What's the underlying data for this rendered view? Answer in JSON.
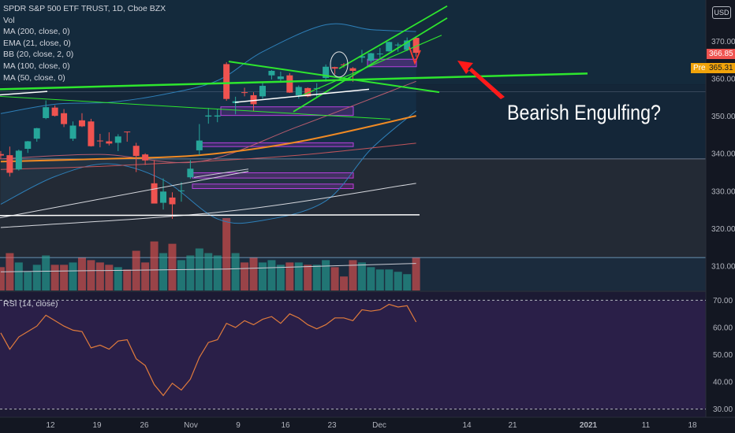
{
  "header": {
    "symbol_line": "SPDR S&P 500 ETF TRUST, 1D, Cboe BZX",
    "indicators": [
      "Vol",
      "MA (200, close, 0)",
      "EMA (21, close, 0)",
      "BB (20, close, 2, 0)",
      "MA (100, close, 0)",
      "MA (50, close, 0)"
    ],
    "rsi_label": "RSI (14, close)",
    "currency": "USD"
  },
  "annotation": "Bearish Engulfing?",
  "price_tags": {
    "last": "366.85",
    "pre_label": "Pre",
    "pre_value": "365.31"
  },
  "colors": {
    "up": "#26a69a",
    "down": "#ef5350",
    "trendline": "#2ee62e",
    "arrow": "#ff1a1a",
    "rsi": "#e07b3c"
  },
  "chart_data": [
    {
      "type": "candlestick",
      "title": "SPDR S&P 500 ETF TRUST, 1D, Cboe BZX",
      "ylim": [
        303.5,
        381
      ],
      "y_ticks": [
        310,
        320,
        330,
        340,
        350,
        360,
        370
      ],
      "x_tick_labels": [
        "12",
        "19",
        "26",
        "Nov",
        "9",
        "16",
        "23",
        "Dec",
        "14",
        "21",
        "2021",
        "11",
        "18"
      ],
      "candles": [
        {
          "date": "2020-10-05",
          "o": 339.9,
          "h": 340.7,
          "l": 338.6,
          "c": 339.5,
          "v": 50
        },
        {
          "date": "2020-10-06",
          "o": 339.6,
          "h": 341.9,
          "l": 333.9,
          "c": 334.9,
          "v": 80
        },
        {
          "date": "2020-10-07",
          "o": 335.8,
          "h": 341.1,
          "l": 335.5,
          "c": 340.8,
          "v": 60
        },
        {
          "date": "2020-10-08",
          "o": 341.3,
          "h": 343.4,
          "l": 340.2,
          "c": 343.3,
          "v": 40
        },
        {
          "date": "2020-10-09",
          "o": 344.0,
          "h": 346.9,
          "l": 343.2,
          "c": 346.8,
          "v": 55
        },
        {
          "date": "2020-10-12",
          "o": 349.5,
          "h": 354.2,
          "l": 349.2,
          "c": 352.4,
          "v": 75
        },
        {
          "date": "2020-10-13",
          "o": 352.3,
          "h": 352.9,
          "l": 349.9,
          "c": 350.1,
          "v": 55
        },
        {
          "date": "2020-10-14",
          "o": 350.8,
          "h": 351.9,
          "l": 347.1,
          "c": 347.9,
          "v": 55
        },
        {
          "date": "2020-10-15",
          "o": 344.0,
          "h": 348.6,
          "l": 343.4,
          "c": 347.5,
          "v": 60
        },
        {
          "date": "2020-10-16",
          "o": 348.9,
          "h": 350.8,
          "l": 347.1,
          "c": 347.3,
          "v": 70
        },
        {
          "date": "2020-10-19",
          "o": 348.6,
          "h": 349.3,
          "l": 341.9,
          "c": 342.0,
          "v": 65
        },
        {
          "date": "2020-10-20",
          "o": 343.5,
          "h": 345.3,
          "l": 341.7,
          "c": 343.4,
          "v": 60
        },
        {
          "date": "2020-10-21",
          "o": 343.3,
          "h": 345.7,
          "l": 342.2,
          "c": 342.7,
          "v": 55
        },
        {
          "date": "2020-10-22",
          "o": 342.9,
          "h": 345.2,
          "l": 340.7,
          "c": 344.6,
          "v": 50
        },
        {
          "date": "2020-10-23",
          "o": 345.9,
          "h": 345.9,
          "l": 343.2,
          "c": 345.8,
          "v": 45
        },
        {
          "date": "2020-10-26",
          "o": 342.1,
          "h": 342.9,
          "l": 335.1,
          "c": 339.4,
          "v": 85
        },
        {
          "date": "2020-10-27",
          "o": 339.8,
          "h": 340.1,
          "l": 337.0,
          "c": 338.2,
          "v": 60
        },
        {
          "date": "2020-10-28",
          "o": 332.1,
          "h": 338.3,
          "l": 326.8,
          "c": 326.7,
          "v": 105
        },
        {
          "date": "2020-10-29",
          "o": 326.9,
          "h": 333.4,
          "l": 325.1,
          "c": 329.9,
          "v": 80
        },
        {
          "date": "2020-10-30",
          "o": 328.3,
          "h": 329.7,
          "l": 322.6,
          "c": 326.5,
          "v": 100
        },
        {
          "date": "2020-11-02",
          "o": 330.2,
          "h": 332.4,
          "l": 327.2,
          "c": 330.2,
          "v": 65
        },
        {
          "date": "2020-11-03",
          "o": 333.7,
          "h": 338.3,
          "l": 333.3,
          "c": 336.0,
          "v": 75
        },
        {
          "date": "2020-11-04",
          "o": 340.9,
          "h": 347.9,
          "l": 339.6,
          "c": 343.5,
          "v": 90
        },
        {
          "date": "2020-11-05",
          "o": 349.9,
          "h": 352.2,
          "l": 348.0,
          "c": 350.2,
          "v": 80
        },
        {
          "date": "2020-11-06",
          "o": 349.9,
          "h": 352.0,
          "l": 348.4,
          "c": 350.2,
          "v": 75
        },
        {
          "date": "2020-11-09",
          "o": 363.9,
          "h": 364.4,
          "l": 354.1,
          "c": 354.6,
          "v": 155
        },
        {
          "date": "2020-11-10",
          "o": 353.5,
          "h": 355.2,
          "l": 350.5,
          "c": 354.0,
          "v": 80
        },
        {
          "date": "2020-11-11",
          "o": 356.4,
          "h": 357.6,
          "l": 355.3,
          "c": 356.3,
          "v": 60
        },
        {
          "date": "2020-11-12",
          "o": 355.6,
          "h": 356.4,
          "l": 351.3,
          "c": 353.2,
          "v": 70
        },
        {
          "date": "2020-11-13",
          "o": 355.3,
          "h": 358.9,
          "l": 354.7,
          "c": 358.1,
          "v": 60
        },
        {
          "date": "2020-11-16",
          "o": 360.9,
          "h": 362.3,
          "l": 359.8,
          "c": 362.1,
          "v": 65
        },
        {
          "date": "2020-11-17",
          "o": 359.9,
          "h": 361.9,
          "l": 359.1,
          "c": 360.6,
          "v": 55
        },
        {
          "date": "2020-11-18",
          "o": 360.9,
          "h": 361.5,
          "l": 356.2,
          "c": 356.3,
          "v": 60
        },
        {
          "date": "2020-11-19",
          "o": 355.6,
          "h": 358.2,
          "l": 354.7,
          "c": 357.8,
          "v": 60
        },
        {
          "date": "2020-11-20",
          "o": 357.5,
          "h": 357.7,
          "l": 355.1,
          "c": 355.3,
          "v": 55
        },
        {
          "date": "2020-11-23",
          "o": 357.3,
          "h": 358.8,
          "l": 354.9,
          "c": 357.5,
          "v": 55
        },
        {
          "date": "2020-11-24",
          "o": 360.2,
          "h": 363.8,
          "l": 359.2,
          "c": 363.2,
          "v": 65
        },
        {
          "date": "2020-11-25",
          "o": 363.1,
          "h": 363.2,
          "l": 361.2,
          "c": 362.7,
          "v": 50
        },
        {
          "date": "2020-11-27",
          "o": 363.8,
          "h": 364.2,
          "l": 363.0,
          "c": 363.7,
          "v": 30
        },
        {
          "date": "2020-11-30",
          "o": 362.8,
          "h": 363.1,
          "l": 359.2,
          "c": 362.1,
          "v": 65
        },
        {
          "date": "2020-12-01",
          "o": 365.6,
          "h": 367.7,
          "l": 364.3,
          "c": 366.0,
          "v": 60
        },
        {
          "date": "2020-12-02",
          "o": 364.8,
          "h": 366.9,
          "l": 364.3,
          "c": 366.8,
          "v": 50
        },
        {
          "date": "2020-12-03",
          "o": 366.7,
          "h": 368.2,
          "l": 365.5,
          "c": 366.7,
          "v": 45
        },
        {
          "date": "2020-12-04",
          "o": 367.3,
          "h": 369.9,
          "l": 367.2,
          "c": 369.8,
          "v": 45
        },
        {
          "date": "2020-12-07",
          "o": 369.0,
          "h": 369.6,
          "l": 367.2,
          "c": 369.1,
          "v": 40
        },
        {
          "date": "2020-12-08",
          "o": 367.7,
          "h": 371.0,
          "l": 367.4,
          "c": 370.2,
          "v": 35
        },
        {
          "date": "2020-12-09",
          "o": 370.9,
          "h": 371.1,
          "l": 365.9,
          "c": 366.9,
          "v": 70
        }
      ],
      "lines": {
        "ma200_vol": [
          {
            "date": "2020-10-05",
            "v": 40
          },
          {
            "date": "2020-11-09",
            "v": 46
          },
          {
            "date": "2020-12-09",
            "v": 58
          }
        ],
        "ema21": [
          {
            "date": "2020-10-05",
            "y": 338.6
          },
          {
            "date": "2020-10-20",
            "y": 339.8
          },
          {
            "date": "2020-11-04",
            "y": 337.9
          },
          {
            "date": "2020-11-19",
            "y": 347.3
          },
          {
            "date": "2020-12-09",
            "y": 359.3
          }
        ],
        "ma50": [
          {
            "date": "2020-10-05",
            "y": 337.9
          },
          {
            "date": "2020-10-20",
            "y": 338.6
          },
          {
            "date": "2020-11-04",
            "y": 339.6
          },
          {
            "date": "2020-11-19",
            "y": 343.2
          },
          {
            "date": "2020-12-09",
            "y": 350.1
          }
        ],
        "ma100": [
          {
            "date": "2020-10-05",
            "y": 335.8
          },
          {
            "date": "2020-10-20",
            "y": 336.6
          },
          {
            "date": "2020-11-04",
            "y": 337.9
          },
          {
            "date": "2020-11-19",
            "y": 339.6
          },
          {
            "date": "2020-12-09",
            "y": 342.8
          }
        ],
        "ma200": [
          {
            "date": "2020-10-05",
            "y": 320.3
          },
          {
            "date": "2020-11-09",
            "y": 324.6
          },
          {
            "date": "2020-12-09",
            "y": 332.1
          }
        ],
        "bb_upper": [
          {
            "date": "2020-10-05",
            "y": 350.7
          },
          {
            "date": "2020-10-13",
            "y": 353.2
          },
          {
            "date": "2020-10-21",
            "y": 353.7
          },
          {
            "date": "2020-10-29",
            "y": 355.8
          },
          {
            "date": "2020-11-06",
            "y": 359.5
          },
          {
            "date": "2020-11-13",
            "y": 367.2
          },
          {
            "date": "2020-11-24",
            "y": 374.4
          },
          {
            "date": "2020-12-02",
            "y": 373.1
          },
          {
            "date": "2020-12-09",
            "y": 372.6
          }
        ],
        "bb_lower": [
          {
            "date": "2020-10-05",
            "y": 326.5
          },
          {
            "date": "2020-10-13",
            "y": 333.9
          },
          {
            "date": "2020-10-21",
            "y": 337.3
          },
          {
            "date": "2020-10-29",
            "y": 333.0
          },
          {
            "date": "2020-11-06",
            "y": 322.6
          },
          {
            "date": "2020-11-13",
            "y": 322.2
          },
          {
            "date": "2020-11-24",
            "y": 327.4
          },
          {
            "date": "2020-12-02",
            "y": 341.2
          },
          {
            "date": "2020-12-09",
            "y": 351.4
          }
        ]
      }
    },
    {
      "type": "line",
      "title": "RSI (14, close)",
      "ylim": [
        27,
        73
      ],
      "y_ticks": [
        30.0,
        40.0,
        50.0,
        60.0,
        70.0
      ],
      "series": [
        {
          "values": [
            58.0,
            52.0,
            56.5,
            58.5,
            60.5,
            64.5,
            62.5,
            60.5,
            59.0,
            58.5,
            52.5,
            53.5,
            52.0,
            55.0,
            55.5,
            48.5,
            46.0,
            39.0,
            35.0,
            39.5,
            37.0,
            41.0,
            49.0,
            54.5,
            55.5,
            61.5,
            60.0,
            62.5,
            61.0,
            63.0,
            64.0,
            61.5,
            65.0,
            63.5,
            61.0,
            59.5,
            61.0,
            63.5,
            63.5,
            62.5,
            66.5,
            66.0,
            66.5,
            68.5,
            67.5,
            68.0,
            62.0
          ]
        }
      ]
    }
  ]
}
